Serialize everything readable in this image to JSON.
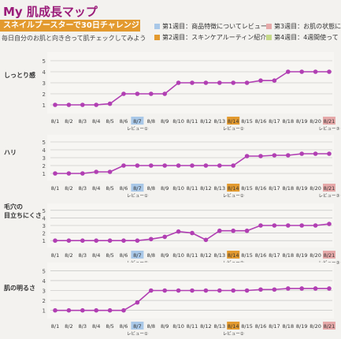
{
  "header": {
    "title": "My 肌成長マップ",
    "banner": "スネイルブースターで30日チャレンジ",
    "subtitle": "毎日自分のお肌と向き合って肌チェックしてみよう"
  },
  "legend": [
    {
      "label": "第1週目：商品特徴についてレビュー",
      "color": "#a9c8e8"
    },
    {
      "label": "第2週目：スキンケアルーティン紹介",
      "color": "#e39a2f"
    },
    {
      "label": "第3週目：お肌の状態に",
      "color": "#e6a9a9"
    },
    {
      "label": "第4週目：4週間使って",
      "color": "#c5d98a"
    }
  ],
  "colors": {
    "line": "#b13fb3",
    "grid": "#b9b9b9",
    "week1": "#a9c8e8",
    "week2": "#e39a2f",
    "week3": "#e6a9a9"
  },
  "chart_data": [
    {
      "type": "line",
      "ylabel": "しっとり感",
      "yticks": [
        1,
        2,
        3,
        4,
        5
      ],
      "ylim": [
        0.5,
        5.5
      ],
      "grid": true,
      "categories": [
        "8/1",
        "8/2",
        "8/3",
        "8/4",
        "8/5",
        "8/6",
        "8/7",
        "8/8",
        "8/9",
        "8/10",
        "8/11",
        "8/12",
        "8/13",
        "8/14",
        "8/15",
        "8/16",
        "8/17",
        "8/18",
        "8/19",
        "8/20",
        "8/21"
      ],
      "highlight": {
        "8/7": "week1",
        "8/14": "week2",
        "8/21": "week3"
      },
      "review_labels": [
        {
          "at": "8/7",
          "text": "レビュー①"
        },
        {
          "at": "8/14",
          "text": "レビュー②"
        },
        {
          "at": "8/21",
          "text": "レビュー③"
        }
      ],
      "series": [
        {
          "values": [
            1,
            1,
            1,
            1,
            1.1,
            2,
            2,
            2,
            2,
            3,
            3,
            3,
            3,
            3,
            3,
            3.2,
            3.2,
            4,
            4,
            4,
            4
          ]
        }
      ]
    },
    {
      "type": "line",
      "ylabel": "ハリ",
      "yticks": [
        1,
        2,
        3,
        4,
        5
      ],
      "ylim": [
        0.5,
        5.5
      ],
      "grid": true,
      "categories": [
        "8/1",
        "8/2",
        "8/3",
        "8/4",
        "8/5",
        "8/6",
        "8/7",
        "8/8",
        "8/9",
        "8/10",
        "8/11",
        "8/12",
        "8/13",
        "8/14",
        "8/15",
        "8/16",
        "8/17",
        "8/18",
        "8/19",
        "8/20",
        "8/21"
      ],
      "highlight": {
        "8/7": "week1",
        "8/14": "week2",
        "8/21": "week3"
      },
      "review_labels": [
        {
          "at": "8/7",
          "text": "レビュー①"
        },
        {
          "at": "8/14",
          "text": "レビュー②"
        },
        {
          "at": "8/21",
          "text": "レビュー③"
        }
      ],
      "series": [
        {
          "values": [
            1,
            1,
            1,
            1.2,
            1.2,
            2,
            2,
            2,
            2,
            2,
            2,
            2,
            2,
            2,
            3.2,
            3.2,
            3.3,
            3.3,
            3.5,
            3.5,
            3.5
          ]
        }
      ]
    },
    {
      "type": "line",
      "ylabel": "毛穴の目立ちにくさ",
      "yticks": [
        1,
        2,
        3,
        4,
        5
      ],
      "ylim": [
        0.5,
        5.5
      ],
      "grid": true,
      "categories": [
        "8/1",
        "8/2",
        "8/3",
        "8/4",
        "8/5",
        "8/6",
        "8/7",
        "8/8",
        "8/9",
        "8/10",
        "8/11",
        "8/12",
        "8/13",
        "8/14",
        "8/15",
        "8/16",
        "8/17",
        "8/18",
        "8/19",
        "8/20",
        "8/21"
      ],
      "highlight": {
        "8/7": "week1",
        "8/14": "week2",
        "8/21": "week3"
      },
      "review_labels": [
        {
          "at": "8/7",
          "text": "レビュー①"
        },
        {
          "at": "8/14",
          "text": "レビュー②"
        },
        {
          "at": "8/21",
          "text": "レビュー③"
        }
      ],
      "series": [
        {
          "values": [
            1,
            1,
            1,
            1,
            1,
            1,
            1,
            1.2,
            1.5,
            2.2,
            2,
            1.1,
            2.3,
            2.3,
            2.3,
            3,
            3,
            3,
            3,
            3,
            3.2
          ]
        }
      ]
    },
    {
      "type": "line",
      "ylabel": "肌の明るさ",
      "yticks": [
        1,
        2,
        3,
        4,
        5
      ],
      "ylim": [
        0.5,
        5.5
      ],
      "grid": true,
      "categories": [
        "8/1",
        "8/2",
        "8/3",
        "8/4",
        "8/5",
        "8/6",
        "8/7",
        "8/8",
        "8/9",
        "8/10",
        "8/11",
        "8/12",
        "8/13",
        "8/14",
        "8/15",
        "8/16",
        "8/17",
        "8/18",
        "8/19",
        "8/20",
        "8/21"
      ],
      "highlight": {
        "8/7": "week1",
        "8/14": "week2",
        "8/21": "week3"
      },
      "review_labels": [
        {
          "at": "8/7",
          "text": "レビュー①"
        },
        {
          "at": "8/14",
          "text": "レビュー②"
        }
      ],
      "series": [
        {
          "values": [
            1,
            1,
            1,
            1,
            1,
            1,
            1.8,
            3,
            3,
            3,
            3,
            3,
            3,
            3,
            3,
            3.1,
            3.1,
            3.2,
            3.2,
            3.2,
            3.2
          ]
        }
      ]
    }
  ]
}
